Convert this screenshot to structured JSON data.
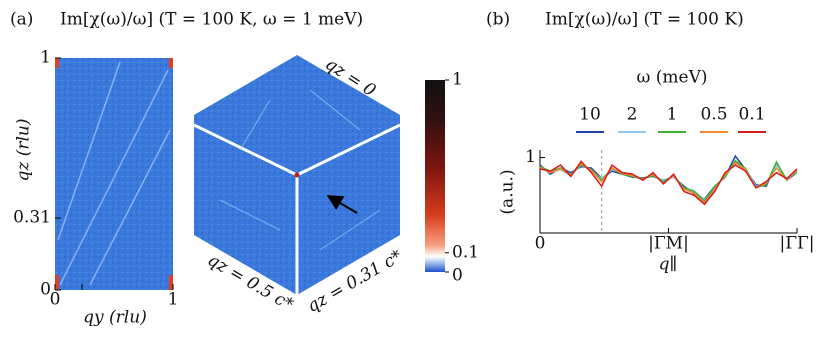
{
  "chart_data": [
    {
      "type": "heatmap",
      "panel": "(a)",
      "title": "Im[χ(ω)/ω]  (T = 100 K, ω = 1 meV)",
      "x_label": "qy (rlu)",
      "y_label": "qz (rlu)",
      "xlim": [
        0,
        1
      ],
      "xticks": [
        0,
        1
      ],
      "ylim": [
        0,
        1
      ],
      "yticks": [
        0,
        0.31,
        1
      ],
      "annotations": [
        "qz = 0",
        "qz = 0.5 c*",
        "qz = 0.31 c*"
      ],
      "colorbar": {
        "lim": [
          0,
          1
        ],
        "ticks": [
          0,
          0.1,
          1
        ]
      }
    },
    {
      "type": "line",
      "panel": "(b)",
      "title": "Im[χ(ω)/ω]  (T = 100 K)",
      "x_label": "q∥",
      "y_label": "(a.u.)",
      "legend_title": "ω (meV)",
      "xlim": [
        0,
        1
      ],
      "xticks": [
        0,
        {
          "value": 0.5,
          "label": "|ΓM|"
        },
        {
          "value": 1,
          "label": "|ΓΓ|"
        }
      ],
      "ylim": [
        0,
        1.1
      ],
      "yticks": [
        1
      ],
      "reference_line_x": 0.24,
      "x": [
        0,
        0.04,
        0.08,
        0.12,
        0.16,
        0.2,
        0.24,
        0.28,
        0.32,
        0.36,
        0.4,
        0.44,
        0.48,
        0.52,
        0.56,
        0.6,
        0.64,
        0.68,
        0.72,
        0.76,
        0.8,
        0.84,
        0.88,
        0.92,
        0.96,
        1.0
      ],
      "series": [
        {
          "name": "10",
          "color": "#1f3fa8",
          "values": [
            0.9,
            0.78,
            0.86,
            0.8,
            0.88,
            0.86,
            0.72,
            0.82,
            0.78,
            0.74,
            0.73,
            0.75,
            0.7,
            0.74,
            0.62,
            0.52,
            0.45,
            0.62,
            0.74,
            1.02,
            0.84,
            0.64,
            0.62,
            0.92,
            0.7,
            0.8
          ]
        },
        {
          "name": "2",
          "color": "#8fc8ec",
          "values": [
            0.86,
            0.8,
            0.84,
            0.76,
            0.9,
            0.82,
            0.72,
            0.84,
            0.8,
            0.76,
            0.72,
            0.76,
            0.7,
            0.74,
            0.6,
            0.56,
            0.44,
            0.6,
            0.76,
            0.94,
            0.86,
            0.62,
            0.66,
            0.9,
            0.72,
            0.8
          ]
        },
        {
          "name": "1",
          "color": "#3cb034",
          "values": [
            0.88,
            0.82,
            0.86,
            0.78,
            0.9,
            0.84,
            0.7,
            0.86,
            0.78,
            0.75,
            0.72,
            0.76,
            0.68,
            0.76,
            0.6,
            0.55,
            0.42,
            0.62,
            0.74,
            0.96,
            0.85,
            0.6,
            0.64,
            0.94,
            0.7,
            0.82
          ]
        },
        {
          "name": "0.5",
          "color": "#f08a30",
          "values": [
            0.87,
            0.8,
            0.85,
            0.77,
            0.92,
            0.83,
            0.68,
            0.86,
            0.79,
            0.76,
            0.71,
            0.78,
            0.66,
            0.76,
            0.58,
            0.53,
            0.4,
            0.58,
            0.77,
            0.93,
            0.84,
            0.6,
            0.66,
            0.86,
            0.7,
            0.84
          ]
        },
        {
          "name": "0.1",
          "color": "#d41c1c",
          "values": [
            0.85,
            0.82,
            0.9,
            0.75,
            0.95,
            0.8,
            0.62,
            0.9,
            0.8,
            0.78,
            0.7,
            0.8,
            0.65,
            0.78,
            0.55,
            0.5,
            0.38,
            0.55,
            0.8,
            0.9,
            0.82,
            0.6,
            0.68,
            0.8,
            0.72,
            0.85
          ]
        }
      ]
    }
  ]
}
